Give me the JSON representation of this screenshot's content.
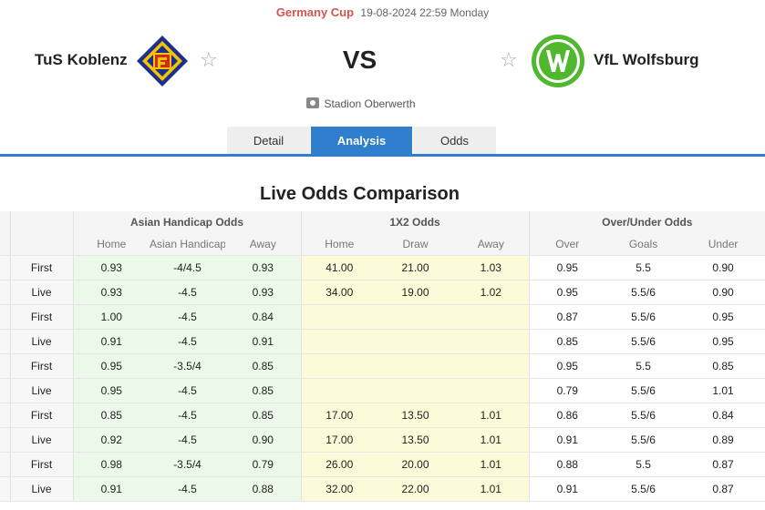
{
  "match": {
    "competition": "Germany Cup",
    "datetime": "19-08-2024 22:59 Monday",
    "home_team": "TuS Koblenz",
    "away_team": "VfL Wolfsburg",
    "vs": "VS",
    "venue": "Stadion Oberwerth"
  },
  "tabs": [
    {
      "label": "Detail",
      "active": false
    },
    {
      "label": "Analysis",
      "active": true
    },
    {
      "label": "Odds",
      "active": false
    }
  ],
  "section_title": "Live Odds Comparison",
  "groups": {
    "ah": "Asian Handicap Odds",
    "x12": "1X2 Odds",
    "ou": "Over/Under Odds"
  },
  "subheaders": {
    "ah": [
      "Home",
      "Asian Handicap",
      "Away"
    ],
    "x12": [
      "Home",
      "Draw",
      "Away"
    ],
    "ou": [
      "Over",
      "Goals",
      "Under"
    ]
  },
  "rows": [
    {
      "type": "First",
      "ah": [
        "0.93",
        "-4/4.5",
        "0.93"
      ],
      "x12": [
        "41.00",
        "21.00",
        "1.03"
      ],
      "ou": [
        "0.95",
        "5.5",
        "0.90"
      ]
    },
    {
      "type": "Live",
      "ah": [
        "0.93",
        "-4.5",
        "0.93"
      ],
      "x12": [
        "34.00",
        "19.00",
        "1.02"
      ],
      "ou": [
        "0.95",
        "5.5/6",
        "0.90"
      ]
    },
    {
      "type": "First",
      "ah": [
        "1.00",
        "-4.5",
        "0.84"
      ],
      "x12": [
        "",
        "",
        ""
      ],
      "ou": [
        "0.87",
        "5.5/6",
        "0.95"
      ]
    },
    {
      "type": "Live",
      "ah": [
        "0.91",
        "-4.5",
        "0.91"
      ],
      "x12": [
        "",
        "",
        ""
      ],
      "ou": [
        "0.85",
        "5.5/6",
        "0.95"
      ]
    },
    {
      "type": "First",
      "ah": [
        "0.95",
        "-3.5/4",
        "0.85"
      ],
      "x12": [
        "",
        "",
        ""
      ],
      "ou": [
        "0.95",
        "5.5",
        "0.85"
      ]
    },
    {
      "type": "Live",
      "ah": [
        "0.95",
        "-4.5",
        "0.85"
      ],
      "x12": [
        "",
        "",
        ""
      ],
      "ou": [
        "0.79",
        "5.5/6",
        "1.01"
      ]
    },
    {
      "type": "First",
      "ah": [
        "0.85",
        "-4.5",
        "0.85"
      ],
      "x12": [
        "17.00",
        "13.50",
        "1.01"
      ],
      "ou": [
        "0.86",
        "5.5/6",
        "0.84"
      ]
    },
    {
      "type": "Live",
      "ah": [
        "0.92",
        "-4.5",
        "0.90"
      ],
      "x12": [
        "17.00",
        "13.50",
        "1.01"
      ],
      "ou": [
        "0.91",
        "5.5/6",
        "0.89"
      ]
    },
    {
      "type": "First",
      "ah": [
        "0.98",
        "-3.5/4",
        "0.79"
      ],
      "x12": [
        "26.00",
        "20.00",
        "1.01"
      ],
      "ou": [
        "0.88",
        "5.5",
        "0.87"
      ]
    },
    {
      "type": "Live",
      "ah": [
        "0.91",
        "-4.5",
        "0.88"
      ],
      "x12": [
        "32.00",
        "22.00",
        "1.01"
      ],
      "ou": [
        "0.91",
        "5.5/6",
        "0.87"
      ]
    }
  ],
  "colors": {
    "accent": "#2f7fcd",
    "cup": "#d9534f",
    "ah_bg": "#ecf8ea",
    "x12_bg": "#fcfbd9"
  },
  "icons": {
    "home_logo": "tus-koblenz-crest",
    "away_logo": "vfl-wolfsburg-logo",
    "favorite": "star-icon",
    "venue": "stadium-icon"
  }
}
